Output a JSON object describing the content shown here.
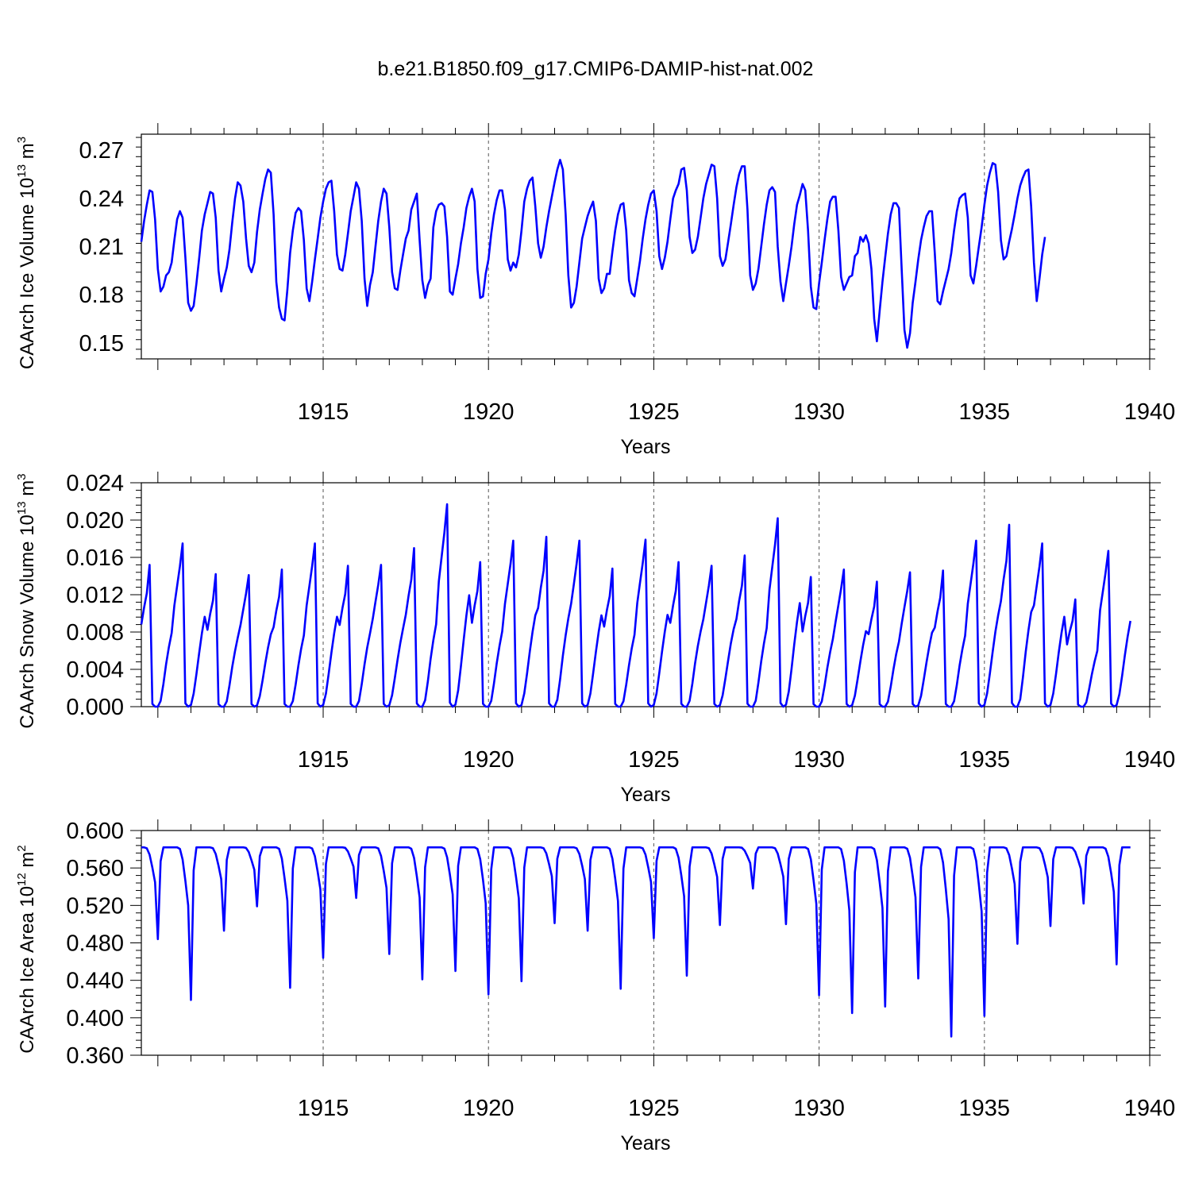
{
  "title": "b.e21.B1850.f09_g17.CMIP6-DAMIP-hist-nat.002",
  "series_color": "#0000ff",
  "chart_data": [
    {
      "type": "line",
      "title": "b.e21.B1850.f09_g17.CMIP6-DAMIP-hist-nat.002",
      "xlabel": "Years",
      "ylabel": "CAArch Ice Volume 10",
      "ylabel_exp": "13",
      "ylabel_unit": " m",
      "ylabel_unit_exp": "3",
      "xlim": [
        1909.5,
        1940.0
      ],
      "ylim": [
        0.14,
        0.28
      ],
      "yticks": [
        0.15,
        0.18,
        0.21,
        0.24,
        0.27
      ],
      "ytick_labels": [
        "0.15",
        "0.18",
        "0.21",
        "0.24",
        "0.27"
      ],
      "xticks": [
        1915,
        1920,
        1925,
        1930,
        1935,
        1940
      ],
      "xtick_labels": [
        "1915",
        "1920",
        "1925",
        "1930",
        "1935",
        "1940"
      ],
      "series": [
        {
          "name": "CAArch Ice Volume",
          "x_start": 1909.5,
          "x_step": 0.08333,
          "values": [
            0.213,
            0.226,
            0.236,
            0.245,
            0.244,
            0.227,
            0.196,
            0.182,
            0.185,
            0.192,
            0.194,
            0.2,
            0.214,
            0.227,
            0.232,
            0.228,
            0.203,
            0.175,
            0.17,
            0.173,
            0.187,
            0.203,
            0.22,
            0.23,
            0.237,
            0.244,
            0.243,
            0.228,
            0.195,
            0.182,
            0.19,
            0.197,
            0.208,
            0.225,
            0.24,
            0.25,
            0.248,
            0.238,
            0.215,
            0.198,
            0.194,
            0.2,
            0.219,
            0.233,
            0.243,
            0.252,
            0.258,
            0.256,
            0.23,
            0.188,
            0.172,
            0.165,
            0.164,
            0.183,
            0.206,
            0.22,
            0.231,
            0.234,
            0.232,
            0.214,
            0.184,
            0.176,
            0.188,
            0.202,
            0.215,
            0.228,
            0.238,
            0.246,
            0.25,
            0.251,
            0.232,
            0.205,
            0.196,
            0.195,
            0.205,
            0.218,
            0.232,
            0.241,
            0.25,
            0.246,
            0.226,
            0.19,
            0.173,
            0.186,
            0.194,
            0.21,
            0.226,
            0.238,
            0.246,
            0.243,
            0.222,
            0.194,
            0.184,
            0.183,
            0.195,
            0.205,
            0.215,
            0.22,
            0.233,
            0.238,
            0.243,
            0.214,
            0.189,
            0.178,
            0.186,
            0.19,
            0.222,
            0.232,
            0.236,
            0.237,
            0.235,
            0.216,
            0.182,
            0.18,
            0.19,
            0.199,
            0.212,
            0.222,
            0.234,
            0.241,
            0.246,
            0.238,
            0.196,
            0.178,
            0.179,
            0.193,
            0.202,
            0.218,
            0.23,
            0.239,
            0.245,
            0.245,
            0.233,
            0.202,
            0.195,
            0.2,
            0.197,
            0.205,
            0.22,
            0.238,
            0.246,
            0.251,
            0.253,
            0.235,
            0.212,
            0.203,
            0.21,
            0.222,
            0.232,
            0.241,
            0.25,
            0.258,
            0.264,
            0.258,
            0.23,
            0.192,
            0.172,
            0.175,
            0.185,
            0.2,
            0.215,
            0.222,
            0.229,
            0.234,
            0.238,
            0.226,
            0.19,
            0.181,
            0.184,
            0.193,
            0.193,
            0.207,
            0.22,
            0.23,
            0.236,
            0.237,
            0.22,
            0.189,
            0.181,
            0.179,
            0.19,
            0.201,
            0.215,
            0.227,
            0.236,
            0.243,
            0.245,
            0.232,
            0.204,
            0.196,
            0.203,
            0.213,
            0.227,
            0.24,
            0.245,
            0.249,
            0.258,
            0.259,
            0.245,
            0.216,
            0.206,
            0.208,
            0.216,
            0.228,
            0.24,
            0.249,
            0.255,
            0.261,
            0.26,
            0.24,
            0.204,
            0.198,
            0.202,
            0.213,
            0.224,
            0.236,
            0.247,
            0.255,
            0.26,
            0.26,
            0.233,
            0.192,
            0.183,
            0.187,
            0.196,
            0.21,
            0.224,
            0.236,
            0.245,
            0.247,
            0.244,
            0.21,
            0.188,
            0.176,
            0.187,
            0.198,
            0.21,
            0.224,
            0.236,
            0.242,
            0.249,
            0.245,
            0.22,
            0.185,
            0.172,
            0.171,
            0.187,
            0.2,
            0.214,
            0.227,
            0.238,
            0.241,
            0.241,
            0.22,
            0.191,
            0.183,
            0.187,
            0.191,
            0.192,
            0.204,
            0.206,
            0.216,
            0.213,
            0.217,
            0.212,
            0.196,
            0.165,
            0.151,
            0.17,
            0.188,
            0.203,
            0.218,
            0.23,
            0.237,
            0.237,
            0.234,
            0.195,
            0.158,
            0.147,
            0.156,
            0.175,
            0.188,
            0.202,
            0.214,
            0.222,
            0.229,
            0.232,
            0.232,
            0.206,
            0.176,
            0.174,
            0.182,
            0.189,
            0.196,
            0.206,
            0.22,
            0.232,
            0.24,
            0.242,
            0.243,
            0.228,
            0.192,
            0.187,
            0.198,
            0.21,
            0.222,
            0.236,
            0.248,
            0.256,
            0.262,
            0.261,
            0.244,
            0.214,
            0.202,
            0.204,
            0.213,
            0.221,
            0.23,
            0.24,
            0.248,
            0.253,
            0.257,
            0.258,
            0.235,
            0.2,
            0.176,
            0.19,
            0.205,
            0.216
          ]
        }
      ]
    },
    {
      "type": "line",
      "xlabel": "Years",
      "ylabel": "CAArch Snow Volume 10",
      "ylabel_exp": "13",
      "ylabel_unit": " m",
      "ylabel_unit_exp": "3",
      "xlim": [
        1909.5,
        1940.0
      ],
      "ylim": [
        0.0,
        0.024
      ],
      "yticks": [
        0.0,
        0.004,
        0.008,
        0.012,
        0.016,
        0.02,
        0.024
      ],
      "ytick_labels": [
        "0.000",
        "0.004",
        "0.008",
        "0.012",
        "0.016",
        "0.020",
        "0.024"
      ],
      "xticks": [
        1915,
        1920,
        1925,
        1930,
        1935,
        1940
      ],
      "xtick_labels": [
        "1915",
        "1920",
        "1925",
        "1930",
        "1935",
        "1940"
      ],
      "series": [
        {
          "name": "CAArch Snow Volume",
          "x_start": 1909.5,
          "x_step": 0.08333,
          "peaks": [
            0.0152,
            0.0175,
            0.0142,
            0.0141,
            0.0147,
            0.0175,
            0.0151,
            0.0152,
            0.017,
            0.0217,
            0.0155,
            0.0178,
            0.0182,
            0.0178,
            0.0148,
            0.0179,
            0.0155,
            0.0151,
            0.0162,
            0.0202,
            0.0139,
            0.0147,
            0.0134,
            0.0144,
            0.0146,
            0.0178,
            0.0195,
            0.0175,
            0.0115,
            0.0167
          ]
        }
      ]
    },
    {
      "type": "line",
      "xlabel": "Years",
      "ylabel": "CAArch Ice Area 10",
      "ylabel_exp": "12",
      "ylabel_unit": " m",
      "ylabel_unit_exp": "2",
      "xlim": [
        1909.5,
        1940.0
      ],
      "ylim": [
        0.36,
        0.6
      ],
      "yticks": [
        0.36,
        0.4,
        0.44,
        0.48,
        0.52,
        0.56,
        0.6
      ],
      "ytick_labels": [
        "0.360",
        "0.400",
        "0.440",
        "0.480",
        "0.520",
        "0.560",
        "0.600"
      ],
      "xticks": [
        1915,
        1920,
        1925,
        1930,
        1935,
        1940
      ],
      "xtick_labels": [
        "1915",
        "1920",
        "1925",
        "1930",
        "1935",
        "1940"
      ],
      "series": [
        {
          "name": "CAArch Ice Area",
          "x_start": 1909.5,
          "x_step": 0.08333,
          "max_value": 0.582,
          "minima": [
            0.484,
            0.419,
            0.493,
            0.519,
            0.432,
            0.464,
            0.528,
            0.468,
            0.441,
            0.45,
            0.425,
            0.439,
            0.501,
            0.493,
            0.431,
            0.485,
            0.445,
            0.499,
            0.538,
            0.5,
            0.424,
            0.405,
            0.412,
            0.442,
            0.38,
            0.402,
            0.479,
            0.498,
            0.522,
            0.457
          ]
        }
      ]
    }
  ]
}
